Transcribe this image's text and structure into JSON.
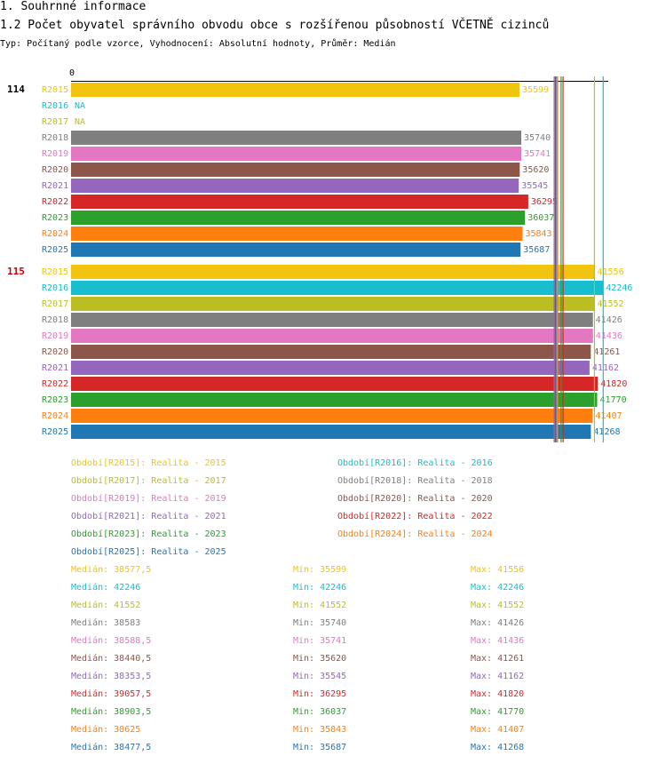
{
  "section_title": "1. Souhrnné informace",
  "chart_title": "1.2 Počet obyvatel správního obvodu obce s rozšířenou působností VČETNĚ cizinců",
  "subtitle": "Typ: Počítaný podle vzorce, Vyhodnocení: Absolutní hodnoty, Průměr: Medián",
  "chart_data": {
    "type": "bar",
    "orientation": "horizontal",
    "title": "1.2 Počet obyvatel správního obvodu obce s rozšířenou působností VČETNĚ cizinců",
    "x_axis_label": "0",
    "xlim": [
      0,
      44000
    ],
    "series_names": [
      "R2015",
      "R2016",
      "R2017",
      "R2018",
      "R2019",
      "R2020",
      "R2021",
      "R2022",
      "R2023",
      "R2024",
      "R2025"
    ],
    "colors": [
      "#f1c40f",
      "#17becf",
      "#bcbd22",
      "#7f7f7f",
      "#e377c2",
      "#8c564b",
      "#9467bd",
      "#d62728",
      "#2ca02c",
      "#ff7f0e",
      "#1f77b4"
    ],
    "groups": [
      {
        "label": "114",
        "label_color": "#000000",
        "values": [
          35599,
          null,
          null,
          35740,
          35741,
          35620,
          35545,
          36295,
          36037,
          35843,
          35687
        ],
        "value_labels": [
          "35599",
          "NA",
          "NA",
          "35740",
          "35741",
          "35620",
          "35545",
          "36295",
          "36037",
          "35843",
          "35687"
        ]
      },
      {
        "label": "115",
        "label_color": "#cc0000",
        "values": [
          41556,
          42246,
          41552,
          41426,
          41436,
          41261,
          41162,
          41820,
          41770,
          41407,
          41268
        ],
        "value_labels": [
          "41556",
          "42246",
          "41552",
          "41426",
          "41436",
          "41261",
          "41162",
          "41820",
          "41770",
          "41407",
          "41268"
        ]
      }
    ],
    "reference_lines": [
      {
        "name": "Medián R2015",
        "value": 38577.5
      },
      {
        "name": "Medián R2016",
        "value": 42246
      },
      {
        "name": "Medián R2017",
        "value": 41552
      },
      {
        "name": "Medián R2018",
        "value": 38583
      },
      {
        "name": "Medián R2019",
        "value": 38588.5
      },
      {
        "name": "Medián R2020",
        "value": 38440.5
      },
      {
        "name": "Medián R2021",
        "value": 38353.5
      },
      {
        "name": "Medián R2022",
        "value": 39057.5
      },
      {
        "name": "Medián R2023",
        "value": 38903.5
      },
      {
        "name": "Medián R2024",
        "value": 38625
      },
      {
        "name": "Medián R2025",
        "value": 38477.5
      }
    ]
  },
  "legend": [
    "Období[R2015]: Realita - 2015",
    "Období[R2016]: Realita - 2016",
    "Období[R2017]: Realita - 2017",
    "Období[R2018]: Realita - 2018",
    "Období[R2019]: Realita - 2019",
    "Období[R2020]: Realita - 2020",
    "Období[R2021]: Realita - 2021",
    "Období[R2022]: Realita - 2022",
    "Období[R2023]: Realita - 2023",
    "Období[R2024]: Realita - 2024",
    "Období[R2025]: Realita - 2025"
  ],
  "stats": [
    {
      "median": "Medián: 38577,5",
      "min": "Min: 35599",
      "max": "Max: 41556"
    },
    {
      "median": "Medián: 42246",
      "min": "Min: 42246",
      "max": "Max: 42246"
    },
    {
      "median": "Medián: 41552",
      "min": "Min: 41552",
      "max": "Max: 41552"
    },
    {
      "median": "Medián: 38583",
      "min": "Min: 35740",
      "max": "Max: 41426"
    },
    {
      "median": "Medián: 38588,5",
      "min": "Min: 35741",
      "max": "Max: 41436"
    },
    {
      "median": "Medián: 38440,5",
      "min": "Min: 35620",
      "max": "Max: 41261"
    },
    {
      "median": "Medián: 38353,5",
      "min": "Min: 35545",
      "max": "Max: 41162"
    },
    {
      "median": "Medián: 39057,5",
      "min": "Min: 36295",
      "max": "Max: 41820"
    },
    {
      "median": "Medián: 38903,5",
      "min": "Min: 36037",
      "max": "Max: 41770"
    },
    {
      "median": "Medián: 38625",
      "min": "Min: 35843",
      "max": "Max: 41407"
    },
    {
      "median": "Medián: 38477,5",
      "min": "Min: 35687",
      "max": "Max: 41268"
    }
  ]
}
